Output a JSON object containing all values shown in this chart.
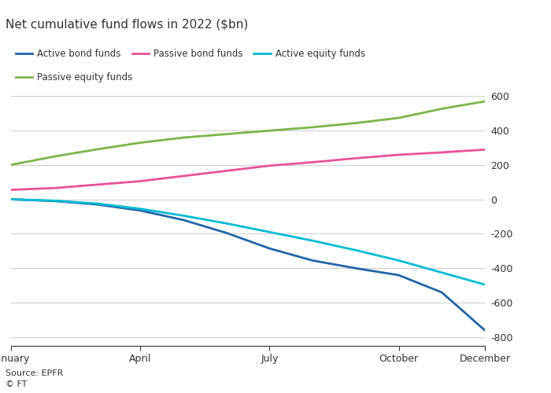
{
  "title": "Net cumulative fund flows in 2022 ($bn)",
  "source": "Source: EPFR",
  "copyright": "© FT",
  "x_labels": [
    "January",
    "April",
    "July",
    "October",
    "December"
  ],
  "x_positions": [
    0,
    3,
    6,
    9,
    11
  ],
  "series": {
    "Active bond funds": {
      "color": "#2166a8",
      "data_x": [
        0,
        1,
        2,
        3,
        4,
        5,
        6,
        7,
        8,
        9,
        10,
        11
      ],
      "data_y": [
        0,
        -10,
        -30,
        -65,
        -120,
        -195,
        -285,
        -355,
        -400,
        -440,
        -540,
        -760
      ]
    },
    "Passive bond funds": {
      "color": "#e8529a",
      "data_x": [
        0,
        1,
        2,
        3,
        4,
        5,
        6,
        7,
        8,
        9,
        10,
        11
      ],
      "data_y": [
        55,
        65,
        85,
        105,
        135,
        165,
        195,
        215,
        238,
        258,
        272,
        288
      ]
    },
    "Active equity funds": {
      "color": "#00bcd4",
      "data_x": [
        0,
        1,
        2,
        3,
        4,
        5,
        6,
        7,
        8,
        9,
        10,
        11
      ],
      "data_y": [
        0,
        -8,
        -25,
        -55,
        -95,
        -140,
        -190,
        -240,
        -295,
        -355,
        -425,
        -495
      ]
    },
    "Passive equity funds": {
      "color": "#7ab648",
      "data_x": [
        0,
        1,
        2,
        3,
        4,
        5,
        6,
        7,
        8,
        9,
        10,
        11
      ],
      "data_y": [
        200,
        248,
        290,
        328,
        358,
        378,
        398,
        418,
        442,
        472,
        525,
        568
      ]
    }
  },
  "ylim": [
    -850,
    700
  ],
  "yticks": [
    -800,
    -600,
    -400,
    -200,
    0,
    200,
    400,
    600
  ],
  "background_color": "#ffffff",
  "plot_bg": "#ffffff",
  "text_color": "#333333",
  "grid_color": "#cccccc",
  "legend_row1": [
    "Active bond funds",
    "Passive bond funds",
    "Active equity funds"
  ],
  "legend_row2": [
    "Passive equity funds"
  ]
}
